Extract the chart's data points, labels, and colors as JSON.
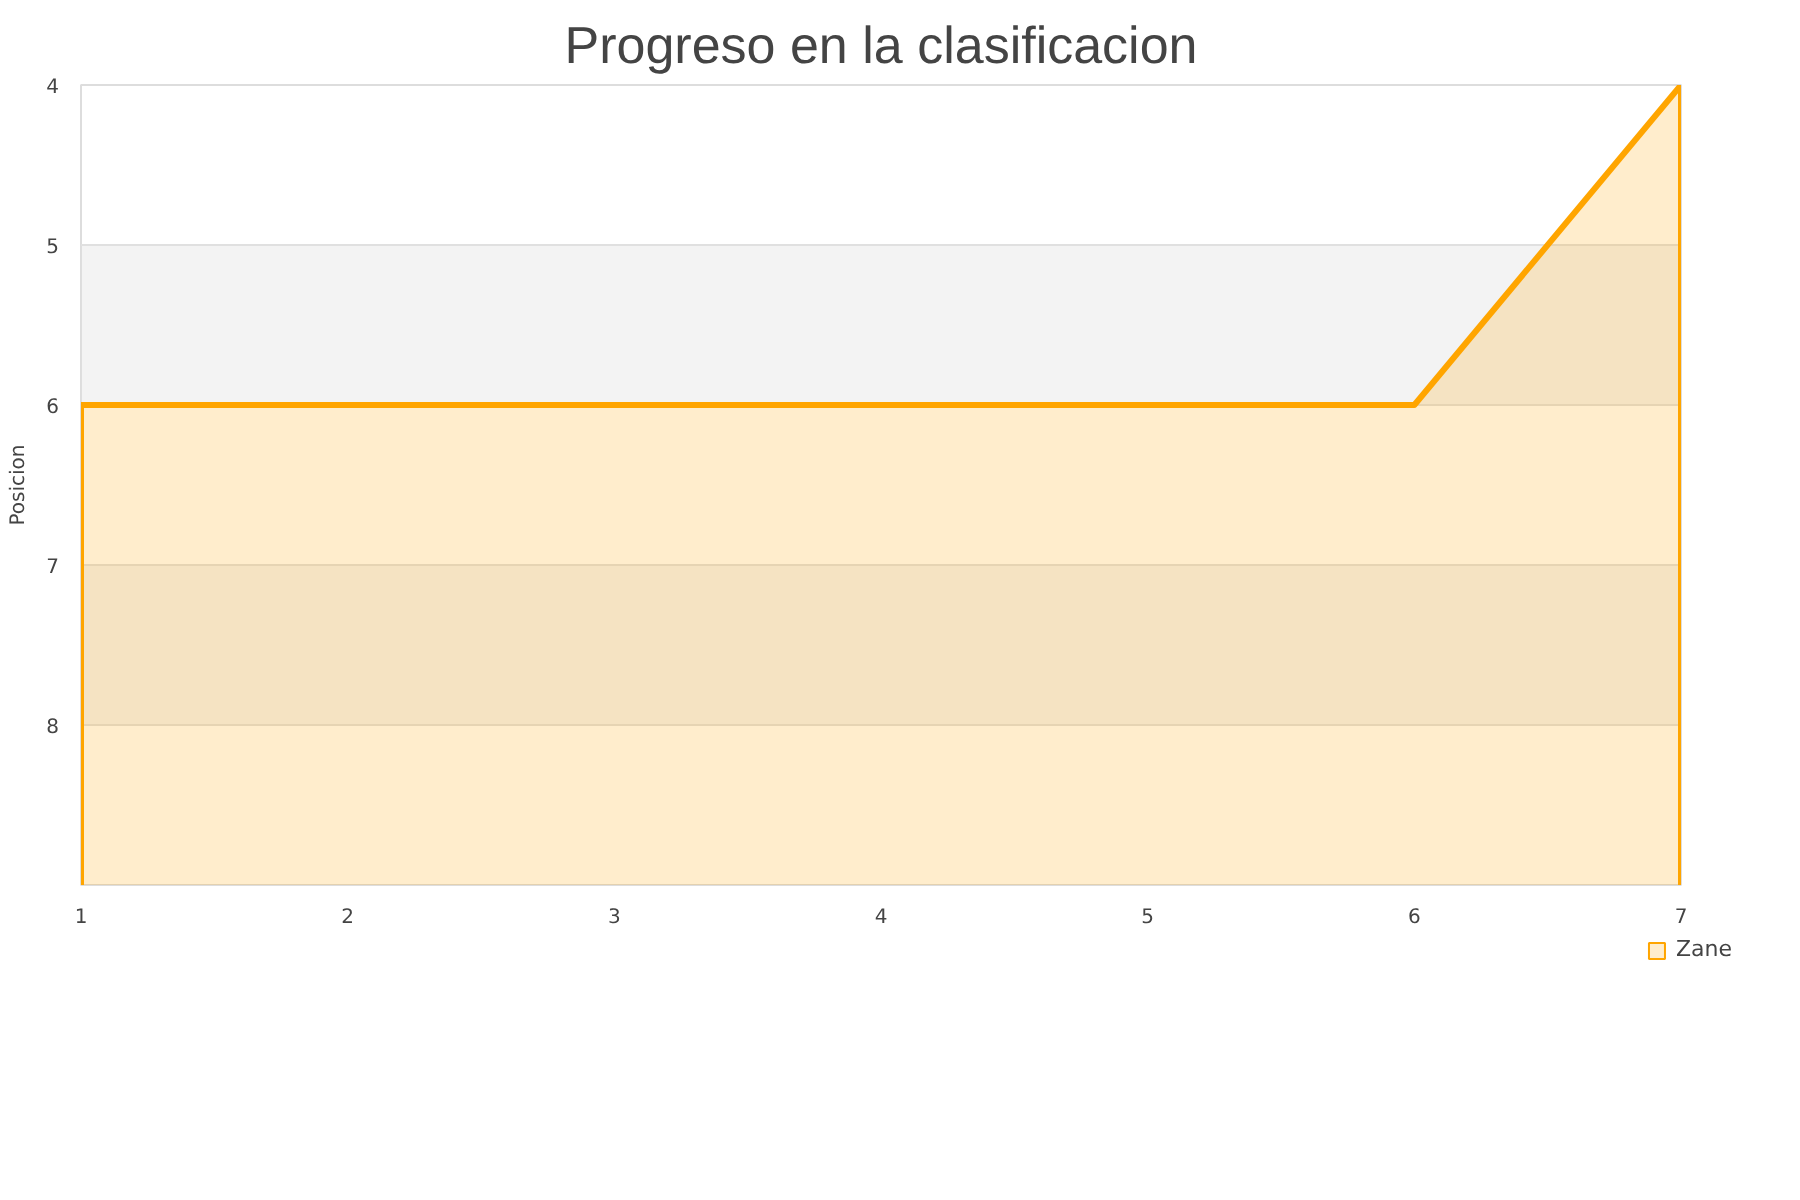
{
  "chart_data": {
    "type": "area",
    "title": "Progreso en la clasificacion",
    "ylabel": "Posicion",
    "x": [
      1,
      2,
      3,
      4,
      5,
      6,
      7
    ],
    "series": [
      {
        "name": "Zane",
        "color": "#ffa500",
        "values": [
          6,
          6,
          6,
          6,
          6,
          6,
          4
        ]
      }
    ],
    "xlim": [
      1,
      7
    ],
    "xticks": [
      1,
      2,
      3,
      4,
      5,
      6,
      7
    ],
    "ylim": [
      9,
      4
    ],
    "yticks": [
      4,
      5,
      6,
      7,
      8
    ],
    "bands": [
      {
        "axis": "y",
        "from": 5,
        "to": 6,
        "color": "#e0e0e0"
      },
      {
        "axis": "y",
        "from": 7,
        "to": 8,
        "color": "#e0e0e0"
      }
    ],
    "grid": "y",
    "legend": "bottom right"
  }
}
